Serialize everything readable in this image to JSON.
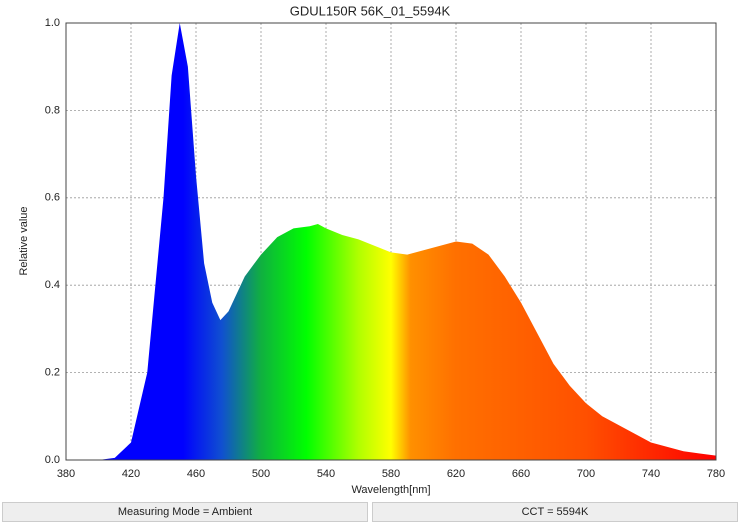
{
  "chart_data": {
    "type": "area",
    "title": "GDUL150R 56K_01_5594K",
    "x_label": "Wavelength[nm]",
    "y_label": "Relative value",
    "x": [
      380,
      390,
      400,
      410,
      420,
      430,
      440,
      445,
      450,
      455,
      460,
      465,
      470,
      475,
      480,
      490,
      500,
      510,
      520,
      530,
      535,
      540,
      550,
      560,
      570,
      580,
      590,
      600,
      610,
      620,
      630,
      640,
      650,
      660,
      670,
      680,
      690,
      700,
      710,
      720,
      730,
      740,
      750,
      760,
      770,
      780
    ],
    "values": [
      0,
      0,
      0,
      0.005,
      0.04,
      0.2,
      0.6,
      0.88,
      1.0,
      0.9,
      0.65,
      0.45,
      0.36,
      0.32,
      0.34,
      0.42,
      0.47,
      0.51,
      0.53,
      0.535,
      0.54,
      0.53,
      0.515,
      0.505,
      0.49,
      0.475,
      0.47,
      0.48,
      0.49,
      0.5,
      0.495,
      0.47,
      0.42,
      0.36,
      0.29,
      0.22,
      0.17,
      0.13,
      0.1,
      0.08,
      0.06,
      0.04,
      0.03,
      0.02,
      0.015,
      0.01
    ],
    "xlim": [
      380,
      780
    ],
    "xticks": [
      380,
      420,
      460,
      500,
      540,
      580,
      620,
      660,
      700,
      740,
      780
    ],
    "ylim": [
      0,
      1
    ],
    "yticks": [
      {
        "value": 0,
        "label": "0.0"
      },
      0.2,
      0.4,
      0.6,
      0.8,
      {
        "value": 1,
        "label": "1.0"
      }
    ],
    "grid": true
  },
  "footer": {
    "left": "Measuring Mode = Ambient",
    "right": "CCT = 5594K"
  }
}
